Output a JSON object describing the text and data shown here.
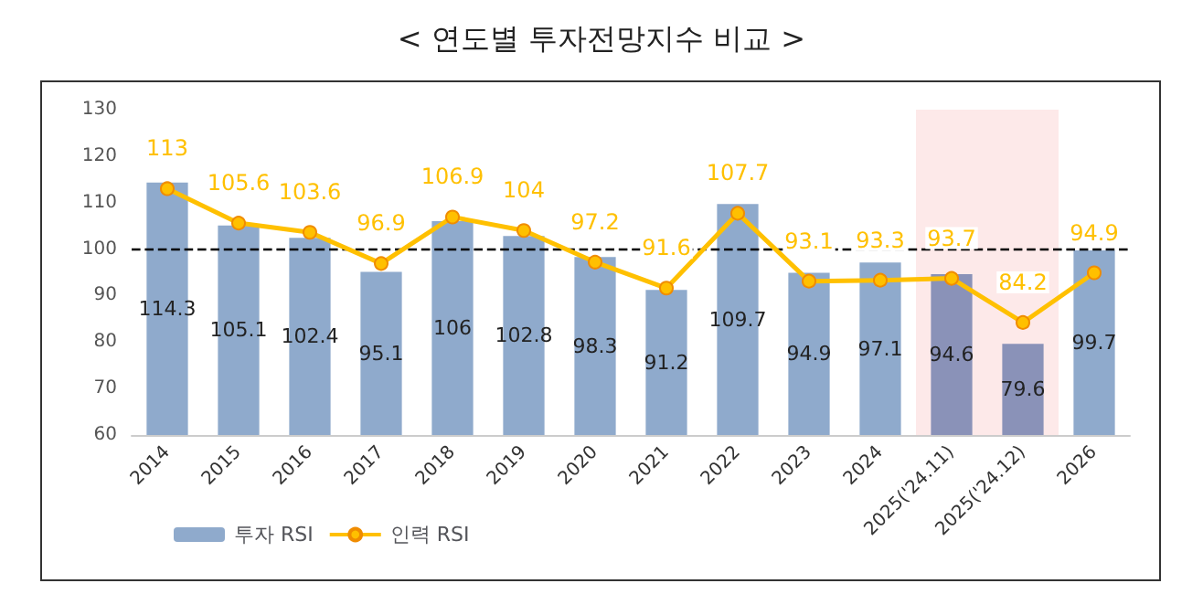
{
  "chart_data": {
    "type": "bar",
    "title": "< 연도별 투자전망지수 비교 >",
    "categories": [
      "2014",
      "2015",
      "2016",
      "2017",
      "2018",
      "2019",
      "2020",
      "2021",
      "2022",
      "2023",
      "2024",
      "2025('24.11)",
      "2025('24.12)",
      "2026"
    ],
    "series": [
      {
        "name": "투자 RSI",
        "color": "#8faacc",
        "colors": [
          "#8faacc",
          "#8faacc",
          "#8faacc",
          "#8faacc",
          "#8faacc",
          "#8faacc",
          "#8faacc",
          "#8faacc",
          "#8faacc",
          "#8faacc",
          "#8faacc",
          "#8a92b8",
          "#8a92b8",
          "#8faacc"
        ],
        "values": [
          114.3,
          105.1,
          102.4,
          95.1,
          106,
          102.8,
          98.3,
          91.2,
          109.7,
          94.9,
          97.1,
          94.6,
          79.6,
          99.7
        ]
      },
      {
        "name": "인력 RSI",
        "type": "line",
        "color": "#ffc000",
        "values": [
          113,
          105.6,
          103.6,
          96.9,
          106.9,
          104,
          97.2,
          91.6,
          107.7,
          93.1,
          93.3,
          93.7,
          84.2,
          94.9
        ]
      }
    ],
    "ylim": [
      60,
      130
    ],
    "yticks": [
      60,
      70,
      80,
      90,
      100,
      110,
      120,
      130
    ],
    "grid": false,
    "legend": "bottom left",
    "marker": "circle",
    "line_style": "solid",
    "data_labels": true,
    "ref_lines": [
      {
        "axis": "y",
        "value": 100,
        "label": null,
        "color": "#000000",
        "line_style": "dashed"
      }
    ],
    "bands": [
      {
        "axis": "x",
        "from": "2025('24.11)",
        "to": "2025('24.12)",
        "label": null,
        "color": "#fde9e9"
      }
    ]
  }
}
